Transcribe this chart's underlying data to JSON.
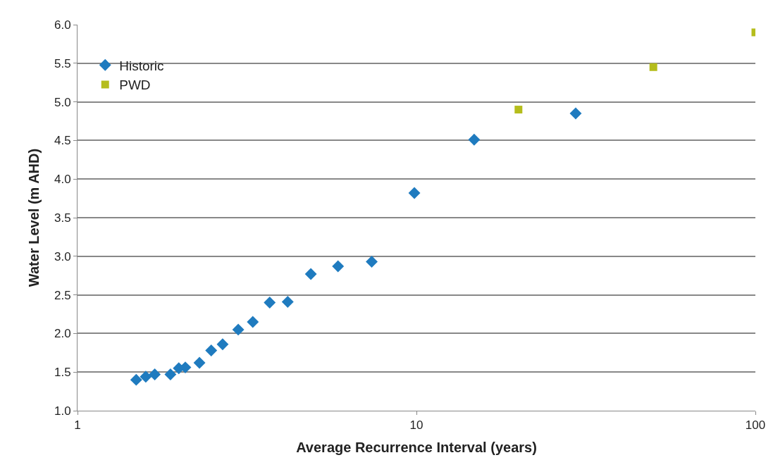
{
  "chart_data": {
    "type": "scatter",
    "xlabel": "Average Recurrence Interval (years)",
    "ylabel": "Water Level (m AHD)",
    "log": "x",
    "grid": "y",
    "legend": "top left",
    "xlim": [
      1,
      100
    ],
    "xticks": [
      1,
      10,
      100
    ],
    "ylim": [
      1.0,
      6.0
    ],
    "yticks": [
      {
        "value": 1.0,
        "label": "1.0"
      },
      {
        "value": 1.5,
        "label": "1.5"
      },
      {
        "value": 2.0,
        "label": "2.0"
      },
      {
        "value": 2.5,
        "label": "2.5"
      },
      {
        "value": 3.0,
        "label": "3.0"
      },
      {
        "value": 3.5,
        "label": "3.5"
      },
      {
        "value": 4.0,
        "label": "4.0"
      },
      {
        "value": 4.5,
        "label": "4.5"
      },
      {
        "value": 5.0,
        "label": "5.0"
      },
      {
        "value": 5.5,
        "label": "5.5"
      },
      {
        "value": 6.0,
        "label": "6.0"
      }
    ],
    "series": [
      {
        "name": "Historic",
        "color": "#1f7bbf",
        "marker": "diamond",
        "x": [
          1.49,
          1.59,
          1.69,
          1.88,
          1.99,
          2.08,
          2.29,
          2.48,
          2.68,
          2.98,
          3.29,
          3.69,
          4.17,
          4.88,
          5.87,
          7.38,
          9.86,
          14.8,
          29.5
        ],
        "values": [
          1.4,
          1.44,
          1.47,
          1.47,
          1.55,
          1.56,
          1.62,
          1.78,
          1.86,
          2.05,
          2.15,
          2.4,
          2.41,
          2.77,
          2.87,
          2.93,
          3.82,
          4.51,
          4.85
        ]
      },
      {
        "name": "PWD",
        "color": "#b5bd1c",
        "marker": "square",
        "x": [
          20,
          50,
          100
        ],
        "values": [
          4.9,
          5.45,
          5.9
        ]
      }
    ]
  }
}
